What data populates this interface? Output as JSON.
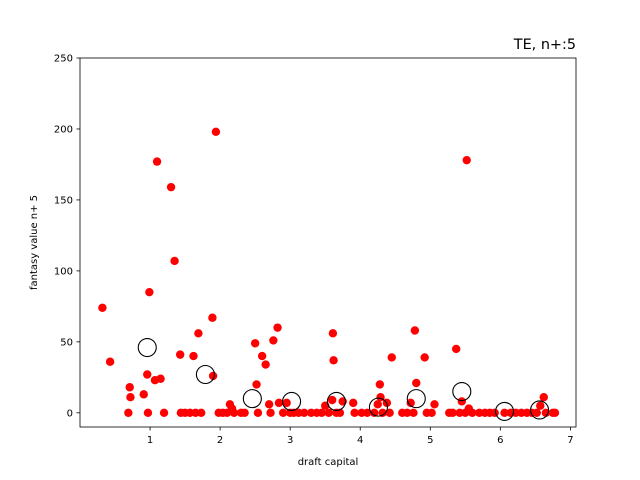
{
  "chart_data": {
    "type": "scatter",
    "title": "TE, n+:5",
    "xlabel": "draft capital",
    "ylabel": "fantasy value n+ 5",
    "xlim": [
      0.0,
      7.08
    ],
    "ylim": [
      -10,
      250
    ],
    "xticks": [
      1,
      2,
      3,
      4,
      5,
      6,
      7
    ],
    "yticks": [
      0,
      50,
      100,
      150,
      200,
      250
    ],
    "grid": false,
    "legend": "none",
    "colors": {
      "points": "#ff0000",
      "means_edge": "#000000",
      "means_face": "#ffffff"
    },
    "series": [
      {
        "marker": "filled-circle",
        "points": [
          [
            0.32,
            74
          ],
          [
            0.43,
            36
          ],
          [
            0.69,
            0
          ],
          [
            0.71,
            18
          ],
          [
            0.72,
            11
          ],
          [
            0.91,
            13
          ],
          [
            0.96,
            27
          ],
          [
            0.97,
            0
          ],
          [
            0.99,
            85
          ],
          [
            1.07,
            23
          ],
          [
            1.1,
            177
          ],
          [
            1.15,
            24
          ],
          [
            1.2,
            0
          ],
          [
            1.3,
            159
          ],
          [
            1.35,
            107
          ],
          [
            1.43,
            41
          ],
          [
            1.44,
            0
          ],
          [
            1.5,
            0
          ],
          [
            1.57,
            0
          ],
          [
            1.62,
            40
          ],
          [
            1.65,
            0
          ],
          [
            1.69,
            56
          ],
          [
            1.73,
            0
          ],
          [
            1.89,
            67
          ],
          [
            1.9,
            26
          ],
          [
            1.94,
            198
          ],
          [
            1.98,
            0
          ],
          [
            2.04,
            0
          ],
          [
            2.1,
            0
          ],
          [
            2.14,
            6
          ],
          [
            2.17,
            3
          ],
          [
            2.2,
            0
          ],
          [
            2.3,
            0
          ],
          [
            2.35,
            0
          ],
          [
            2.5,
            49
          ],
          [
            2.52,
            20
          ],
          [
            2.54,
            0
          ],
          [
            2.6,
            40
          ],
          [
            2.65,
            34
          ],
          [
            2.7,
            6
          ],
          [
            2.72,
            0
          ],
          [
            2.76,
            51
          ],
          [
            2.82,
            60
          ],
          [
            2.84,
            7
          ],
          [
            2.9,
            0
          ],
          [
            2.95,
            7
          ],
          [
            3.0,
            0
          ],
          [
            3.05,
            0
          ],
          [
            3.12,
            0
          ],
          [
            3.2,
            0
          ],
          [
            3.3,
            0
          ],
          [
            3.38,
            0
          ],
          [
            3.45,
            0
          ],
          [
            3.5,
            5
          ],
          [
            3.55,
            0
          ],
          [
            3.6,
            9
          ],
          [
            3.61,
            56
          ],
          [
            3.62,
            37
          ],
          [
            3.66,
            0
          ],
          [
            3.71,
            0
          ],
          [
            3.75,
            8
          ],
          [
            3.9,
            7
          ],
          [
            3.92,
            0
          ],
          [
            4.02,
            0
          ],
          [
            4.1,
            0
          ],
          [
            4.2,
            0
          ],
          [
            4.25,
            6
          ],
          [
            4.28,
            20
          ],
          [
            4.29,
            11
          ],
          [
            4.32,
            0
          ],
          [
            4.38,
            7
          ],
          [
            4.42,
            0
          ],
          [
            4.45,
            39
          ],
          [
            4.6,
            0
          ],
          [
            4.67,
            0
          ],
          [
            4.72,
            7
          ],
          [
            4.76,
            0
          ],
          [
            4.78,
            58
          ],
          [
            4.8,
            21
          ],
          [
            4.92,
            39
          ],
          [
            4.95,
            0
          ],
          [
            5.02,
            0
          ],
          [
            5.06,
            6
          ],
          [
            5.27,
            0
          ],
          [
            5.32,
            0
          ],
          [
            5.37,
            45
          ],
          [
            5.42,
            0
          ],
          [
            5.45,
            8
          ],
          [
            5.5,
            0
          ],
          [
            5.52,
            178
          ],
          [
            5.55,
            3
          ],
          [
            5.6,
            0
          ],
          [
            5.7,
            0
          ],
          [
            5.78,
            0
          ],
          [
            5.85,
            0
          ],
          [
            5.92,
            0
          ],
          [
            6.06,
            0
          ],
          [
            6.15,
            0
          ],
          [
            6.22,
            0
          ],
          [
            6.3,
            0
          ],
          [
            6.38,
            0
          ],
          [
            6.45,
            0
          ],
          [
            6.52,
            0
          ],
          [
            6.57,
            5
          ],
          [
            6.62,
            11
          ],
          [
            6.65,
            0
          ],
          [
            6.75,
            0
          ],
          [
            6.78,
            0
          ]
        ]
      },
      {
        "marker": "hollow-circle",
        "points": [
          [
            0.96,
            46
          ],
          [
            1.79,
            27
          ],
          [
            2.46,
            10
          ],
          [
            3.02,
            8
          ],
          [
            3.66,
            8
          ],
          [
            4.26,
            4
          ],
          [
            4.8,
            10
          ],
          [
            5.45,
            15
          ],
          [
            6.06,
            1
          ],
          [
            6.56,
            2
          ]
        ]
      }
    ]
  }
}
